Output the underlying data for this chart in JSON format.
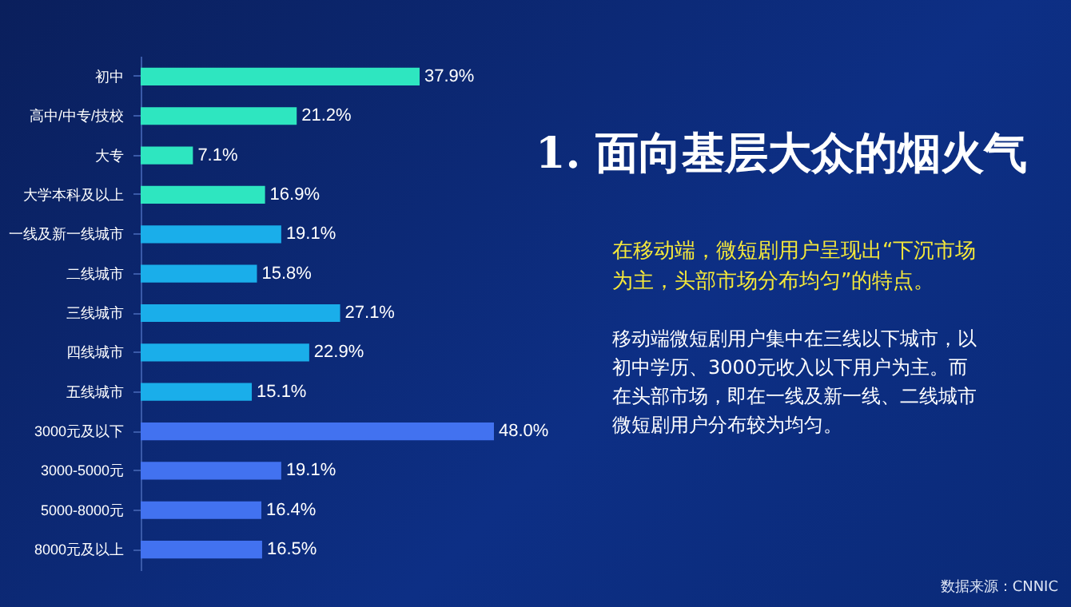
{
  "chart_data": {
    "type": "bar",
    "orientation": "horizontal",
    "title": "1. 面向基层大众的烟火气",
    "subtitle": "在移动端，微短剧用户呈现出“下沉市场为主，头部市场分布均匀”的特点。",
    "annotations": [
      "移动端微短剧用户集中在三线以下城市，以初中学历、3000元收入以下用户为主。而在头部市场，即在一线及新一线、二线城市微短剧用户分布较为均匀。",
      "数据来源：CNNIC"
    ],
    "categories": [
      "初中",
      "高中/中专/技校",
      "大专",
      "大学本科及以上",
      "一线及新一线城市",
      "二线城市",
      "三线城市",
      "四线城市",
      "五线城市",
      "3000元及以下",
      "3000-5000元",
      "5000-8000元",
      "8000元及以上"
    ],
    "values": [
      37.9,
      21.2,
      7.1,
      16.9,
      19.1,
      15.8,
      27.1,
      22.9,
      15.1,
      48.0,
      19.1,
      16.4,
      16.5
    ],
    "value_labels": [
      "37.9%",
      "21.2%",
      "7.1%",
      "16.9%",
      "19.1%",
      "15.8%",
      "27.1%",
      "22.9%",
      "15.1%",
      "48.0%",
      "19.1%",
      "16.4%",
      "16.5%"
    ],
    "colors": [
      "#2ee6c0",
      "#2ee6c0",
      "#2ee6c0",
      "#2ee6c0",
      "#1aaeea",
      "#1aaeea",
      "#1aaeea",
      "#1aaeea",
      "#1aaeea",
      "#4272f0",
      "#4272f0",
      "#4272f0",
      "#4272f0"
    ],
    "grid": false
  }
}
